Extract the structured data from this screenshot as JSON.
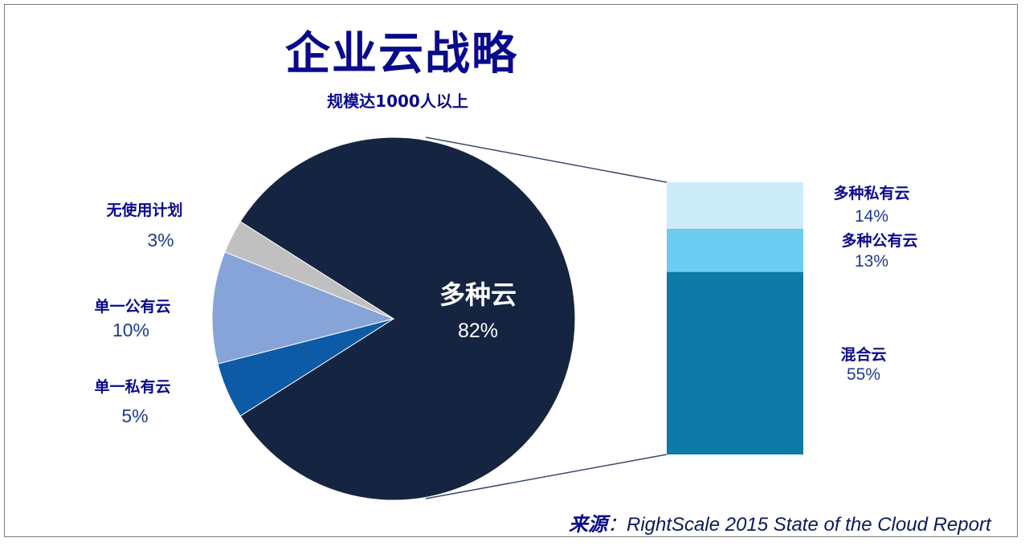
{
  "title": "企业云战略",
  "subtitle": "规模达1000人以上",
  "source": {
    "label": "来源",
    "text": "：RightScale 2015 State of the Cloud Report"
  },
  "colors": {
    "multi_cloud": "#152441",
    "single_private": "#0d5aa6",
    "single_public": "#87a4d9",
    "no_plan": "#c0c0c0",
    "hybrid": "#0e7aa8",
    "multi_public": "#6ccbf0",
    "multi_private": "#cdecf9"
  },
  "chart_data": [
    {
      "type": "pie",
      "slices": [
        {
          "label": "多种云",
          "value": 82,
          "display": "82%"
        },
        {
          "label": "单一私有云",
          "value": 5,
          "display": "5%"
        },
        {
          "label": "单一公有云",
          "value": 10,
          "display": "10%"
        },
        {
          "label": "无使用计划",
          "value": 3,
          "display": "3%"
        }
      ]
    },
    {
      "type": "bar",
      "stacked": true,
      "segments": [
        {
          "label": "混合云",
          "value": 55,
          "display": "55%"
        },
        {
          "label": "多种公有云",
          "value": 13,
          "display": "13%"
        },
        {
          "label": "多种私有云",
          "value": 14,
          "display": "14%"
        }
      ]
    }
  ]
}
